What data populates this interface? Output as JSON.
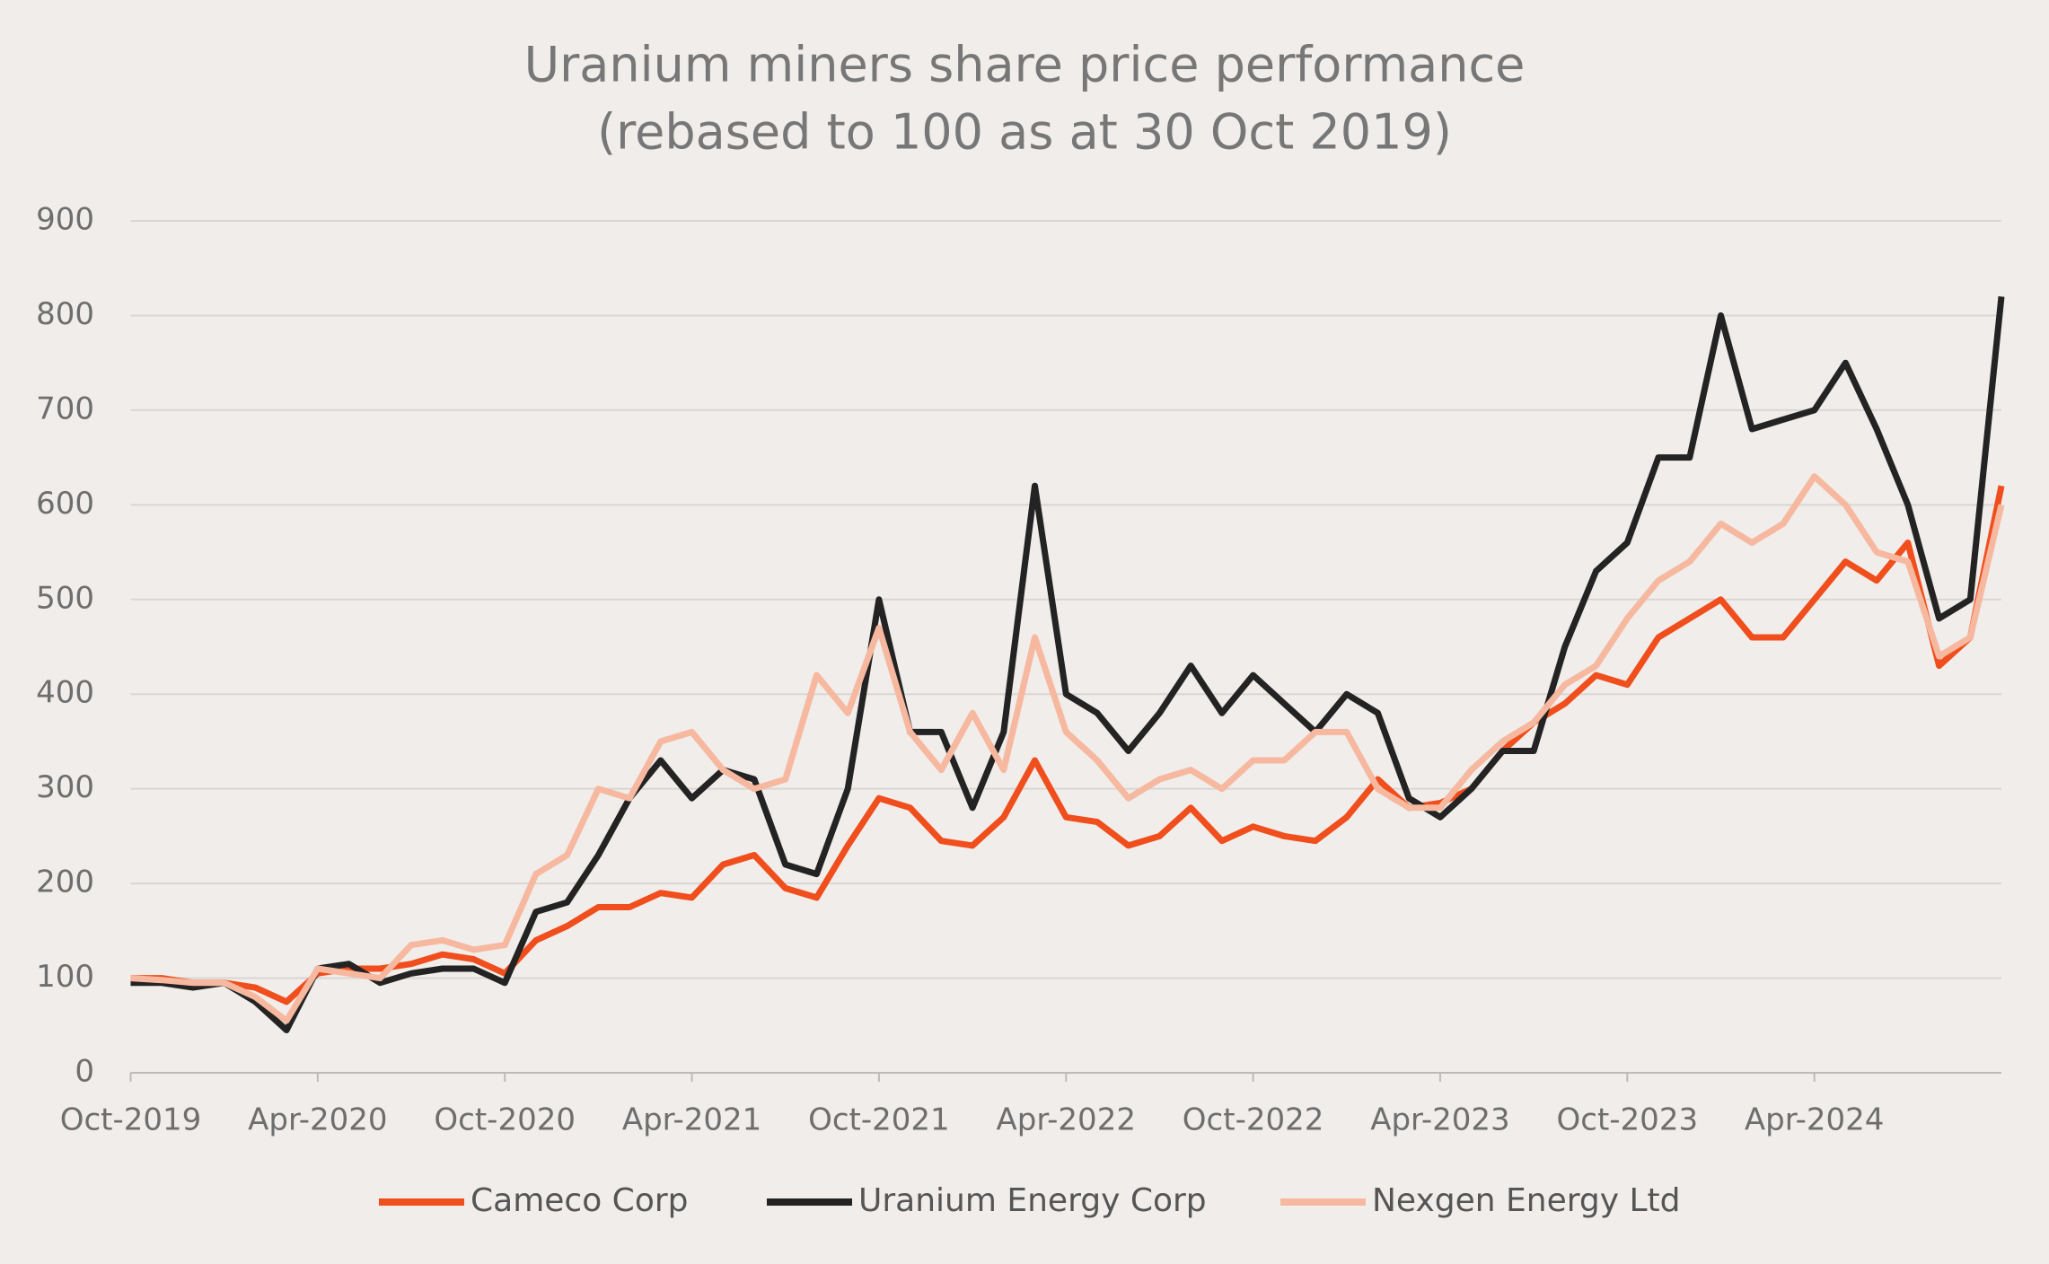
{
  "chart_data": {
    "type": "line",
    "title": "Uranium miners share price performance",
    "subtitle": "(rebased to 100 as at 30 Oct 2019)",
    "categories": [
      "Oct-2019",
      null,
      null,
      null,
      null,
      null,
      "Apr-2020",
      null,
      null,
      null,
      null,
      null,
      "Oct-2020",
      null,
      null,
      null,
      null,
      null,
      "Apr-2021",
      null,
      null,
      null,
      null,
      null,
      "Oct-2021",
      null,
      null,
      null,
      null,
      null,
      "Apr-2022",
      null,
      null,
      null,
      null,
      null,
      "Oct-2022",
      null,
      null,
      null,
      null,
      null,
      "Apr-2023",
      null,
      null,
      null,
      null,
      null,
      "Oct-2023",
      null,
      null,
      null,
      null,
      null,
      "Apr-2024",
      null,
      null,
      null,
      null,
      null,
      null
    ],
    "series": [
      {
        "name": "Cameco Corp",
        "color": "#f04e1c",
        "values": [
          100,
          100,
          95,
          95,
          90,
          75,
          105,
          110,
          110,
          115,
          125,
          120,
          105,
          140,
          155,
          175,
          175,
          190,
          185,
          220,
          230,
          195,
          185,
          240,
          290,
          280,
          245,
          240,
          270,
          330,
          270,
          265,
          240,
          250,
          280,
          245,
          260,
          250,
          245,
          270,
          310,
          280,
          285,
          300,
          340,
          370,
          390,
          420,
          410,
          460,
          480,
          500,
          460,
          460,
          500,
          540,
          520,
          560,
          430,
          460,
          620
        ]
      },
      {
        "name": "Uranium Energy Corp",
        "color": "#232323",
        "values": [
          95,
          95,
          90,
          95,
          75,
          45,
          110,
          115,
          95,
          105,
          110,
          110,
          95,
          170,
          180,
          230,
          290,
          330,
          290,
          320,
          310,
          220,
          210,
          300,
          500,
          360,
          360,
          280,
          360,
          620,
          400,
          380,
          340,
          380,
          430,
          380,
          420,
          390,
          360,
          400,
          380,
          290,
          270,
          300,
          340,
          340,
          450,
          530,
          560,
          650,
          650,
          800,
          680,
          690,
          700,
          750,
          680,
          600,
          480,
          500,
          820
        ]
      },
      {
        "name": "Nexgen Energy Ltd",
        "color": "#f7b8a0",
        "values": [
          100,
          98,
          95,
          95,
          80,
          55,
          110,
          105,
          100,
          135,
          140,
          130,
          135,
          210,
          230,
          300,
          290,
          350,
          360,
          320,
          300,
          310,
          420,
          380,
          470,
          360,
          320,
          380,
          320,
          460,
          360,
          330,
          290,
          310,
          320,
          300,
          330,
          330,
          360,
          360,
          300,
          280,
          280,
          320,
          350,
          370,
          410,
          430,
          480,
          520,
          540,
          580,
          560,
          580,
          630,
          600,
          550,
          540,
          440,
          460,
          600
        ]
      }
    ],
    "ylim": [
      0,
      900
    ],
    "yticks": [
      0,
      100,
      200,
      300,
      400,
      500,
      600,
      700,
      800,
      900
    ],
    "grid": true,
    "legend": "bottom"
  }
}
